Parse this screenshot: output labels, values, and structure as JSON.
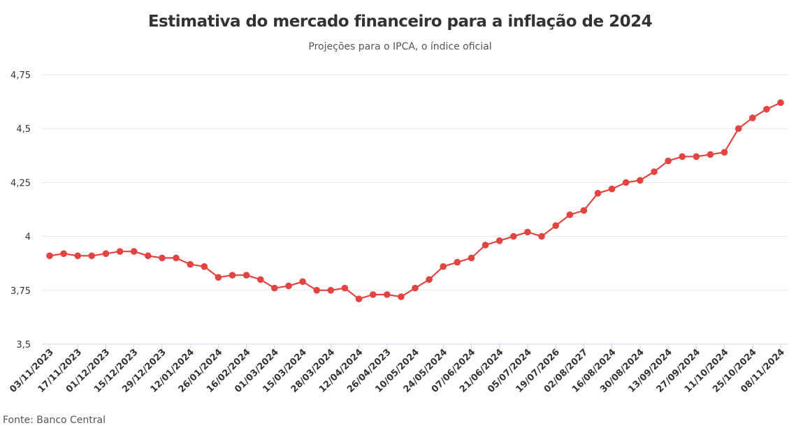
{
  "title": "Estimativa do mercado financeiro para a inflação de 2024",
  "subtitle": "Projeções para o IPCA, o índice oficial",
  "source": "Fonte: Banco Central",
  "colors": {
    "line": "#e04541",
    "grid": "#e6e6e6",
    "axis": "#ccd6eb",
    "text": "#333333"
  },
  "chart_data": {
    "type": "line",
    "title": "Estimativa do mercado financeiro para a inflação de 2024",
    "subtitle": "Projeções para o IPCA, o índice oficial",
    "xlabel": "",
    "ylabel": "",
    "ylim": [
      3.5,
      4.75
    ],
    "y_ticks": [
      3.5,
      3.75,
      4,
      4.25,
      4.5,
      4.75
    ],
    "y_tick_labels": [
      "3,5",
      "3,75",
      "4",
      "4,25",
      "4,5",
      "4,75"
    ],
    "x_tick_labels": [
      "03/11/2023",
      "17/11/2023",
      "01/12/2023",
      "15/12/2023",
      "29/12/2023",
      "12/01/2024",
      "26/01/2024",
      "16/02/2024",
      "01/03/2024",
      "15/03/2024",
      "28/03/2024",
      "12/04/2024",
      "26/04/2023",
      "10/05/2024",
      "24/05/2024",
      "07/06/2024",
      "21/06/2024",
      "05/07/2024",
      "19/07/2026",
      "02/08/2027",
      "16/08/2024",
      "30/08/2024",
      "13/09/2024",
      "27/09/2024",
      "11/10/2024",
      "25/10/2024",
      "08/11/2024"
    ],
    "grid": true,
    "legend": "none",
    "series": [
      {
        "values": [
          3.91,
          3.92,
          3.91,
          3.91,
          3.92,
          3.93,
          3.93,
          3.91,
          3.9,
          3.9,
          3.87,
          3.86,
          3.81,
          3.82,
          3.82,
          3.8,
          3.76,
          3.77,
          3.79,
          3.75,
          3.75,
          3.76,
          3.71,
          3.73,
          3.73,
          3.72,
          3.76,
          3.8,
          3.86,
          3.88,
          3.9,
          3.96,
          3.98,
          4.0,
          4.02,
          4.0,
          4.05,
          4.1,
          4.12,
          4.2,
          4.22,
          4.25,
          4.26,
          4.3,
          4.35,
          4.37,
          4.37,
          4.38,
          4.39,
          4.5,
          4.55,
          4.59,
          4.62
        ]
      }
    ]
  }
}
